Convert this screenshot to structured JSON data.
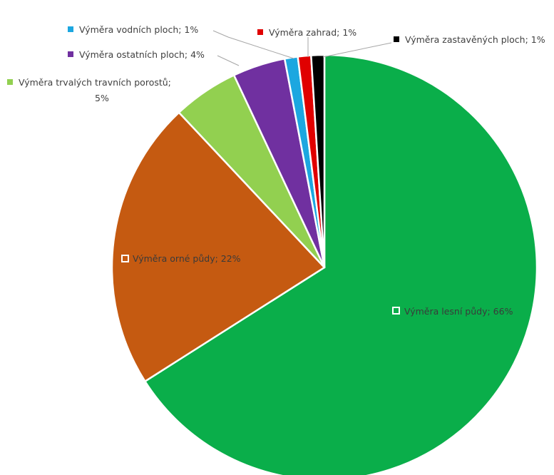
{
  "chart_data": {
    "type": "pie",
    "title": "",
    "slices": [
      {
        "label": "Výměra lesní půdy; 66%",
        "value": 66,
        "color": "#0aae4a"
      },
      {
        "label": "Výměra orné půdy; 22%",
        "value": 22,
        "color": "#c55a11"
      },
      {
        "label": "Výměra trvalých travních porostů; 5%",
        "value": 5,
        "color": "#92d050"
      },
      {
        "label": "Výměra ostatních ploch; 4%",
        "value": 4,
        "color": "#7030a0"
      },
      {
        "label": "Výměra vodních ploch; 1%",
        "value": 1,
        "color": "#1ca7e0"
      },
      {
        "label": "Výměra zahrad; 1%",
        "value": 1,
        "color": "#e00000"
      },
      {
        "label": "Výměra zastavěných ploch; 1%",
        "value": 1,
        "color": "#000000"
      }
    ],
    "slice_text": {
      "les": "Výměra lesní půdy; 66%",
      "orna": "Výměra orné půdy; 22%",
      "trv_line1": "Výměra trvalých travních porostů;",
      "trv_line2": "5%",
      "ost": "Výměra ostatních ploch; 4%",
      "vod": "Výměra vodních ploch; 1%",
      "zah": "Výměra zahrad; 1%",
      "zas": "Výměra zastavěných ploch; 1%"
    }
  }
}
